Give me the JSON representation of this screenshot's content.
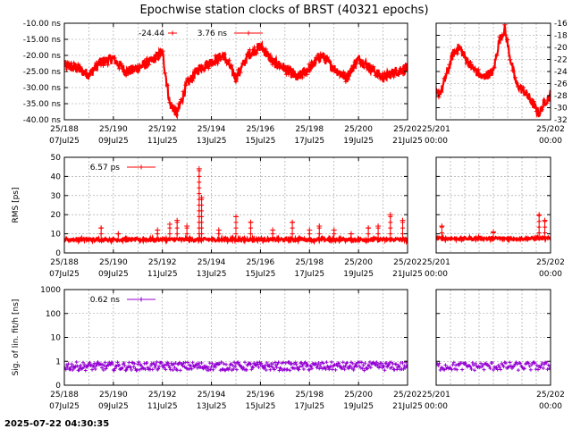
{
  "title": "Epochwise station clocks of BRST (40321 epochs)",
  "timestamp": "2025-07-22 04:30:35",
  "colors": {
    "clock": "#ff0000",
    "rms": "#ff0000",
    "sig": "#9400d3",
    "grid": "#999999"
  },
  "chart_data": [
    {
      "id": "clock-main",
      "type": "line",
      "ylabel": "",
      "ylim": [
        -40,
        -10
      ],
      "yticks": [
        -10,
        -15,
        -20,
        -25,
        -30,
        -35,
        -40
      ],
      "yticklabels": [
        "-10.00 ns",
        "-15.00 ns",
        "-20.00 ns",
        "-25.00 ns",
        "-30.00 ns",
        "-35.00 ns",
        "-40.00 ns"
      ],
      "xlim": [
        188,
        202
      ],
      "xticks": [
        188,
        190,
        192,
        194,
        196,
        198,
        200,
        202
      ],
      "xticklabels": [
        [
          "25/188",
          "07Jul25"
        ],
        [
          "25/190",
          "09Jul25"
        ],
        [
          "25/192",
          "11Jul25"
        ],
        [
          "25/194",
          "13Jul25"
        ],
        [
          "25/196",
          "15Jul25"
        ],
        [
          "25/198",
          "17Jul25"
        ],
        [
          "25/200",
          "19Jul25"
        ],
        [
          "25/202",
          "21Jul25"
        ]
      ],
      "legend": [
        {
          "value": "-24.44",
          "key": "offset"
        },
        {
          "value": "3.76 ns",
          "key": "rms"
        }
      ],
      "series": [
        {
          "x": [
            188.0,
            188.5,
            189.0,
            189.5,
            190.0,
            190.5,
            191.0,
            191.5,
            192.0,
            192.3,
            192.6,
            193.0,
            193.5,
            194.0,
            194.5,
            195.0,
            195.5,
            196.0,
            196.5,
            197.0,
            197.5,
            198.0,
            198.5,
            199.0,
            199.5,
            200.0,
            200.5,
            201.0,
            201.5,
            202.0
          ],
          "y": [
            -23,
            -24,
            -26,
            -22,
            -21,
            -25,
            -24,
            -22,
            -19,
            -35,
            -38,
            -29,
            -24,
            -22,
            -20,
            -27,
            -20,
            -17,
            -22,
            -24,
            -27,
            -24,
            -20,
            -24,
            -27,
            -21,
            -24,
            -27,
            -25,
            -24
          ]
        }
      ]
    },
    {
      "id": "clock-zoom",
      "type": "line",
      "ylim": [
        -32,
        -16
      ],
      "yticks": [
        -16,
        -18,
        -20,
        -22,
        -24,
        -26,
        -28,
        -30,
        -32
      ],
      "yticklabels": [
        "-16",
        "-18",
        "-20",
        "-22",
        "-24",
        "-26",
        "-28",
        "-30",
        "-32"
      ],
      "xlim": [
        201,
        202
      ],
      "xticks": [
        201,
        202
      ],
      "xticklabels": [
        [
          "25/201",
          "00:00"
        ],
        [
          "25/202",
          "00:00"
        ]
      ],
      "series": [
        {
          "x": [
            201.0,
            201.05,
            201.1,
            201.15,
            201.2,
            201.3,
            201.4,
            201.5,
            201.55,
            201.6,
            201.65,
            201.7,
            201.8,
            201.9,
            201.95,
            202.0
          ],
          "y": [
            -28,
            -27,
            -24,
            -21,
            -20,
            -23,
            -25,
            -24,
            -19,
            -17,
            -22,
            -26,
            -28,
            -31,
            -29,
            -28
          ]
        }
      ]
    },
    {
      "id": "rms-main",
      "type": "line",
      "ylabel": "RMS [ps]",
      "ylim": [
        0,
        50
      ],
      "yticks": [
        0,
        10,
        20,
        30,
        40,
        50
      ],
      "yticklabels": [
        "0",
        "10",
        "20",
        "30",
        "40",
        "50"
      ],
      "xlim": [
        188,
        202
      ],
      "xticks": [
        188,
        190,
        192,
        194,
        196,
        198,
        200,
        202
      ],
      "xticklabels": [
        [
          "25/188",
          "07Jul25"
        ],
        [
          "25/190",
          "09Jul25"
        ],
        [
          "25/192",
          "11Jul25"
        ],
        [
          "25/194",
          "13Jul25"
        ],
        [
          "25/196",
          "15Jul25"
        ],
        [
          "25/198",
          "17Jul25"
        ],
        [
          "25/200",
          "19Jul25"
        ],
        [
          "25/202",
          "21Jul25"
        ]
      ],
      "legend": [
        {
          "value": "6.57 ps",
          "key": "rms"
        }
      ],
      "baseline": 7,
      "spikes": {
        "x": [
          189.5,
          190.2,
          191.8,
          192.3,
          192.6,
          193.0,
          193.5,
          193.6,
          194.3,
          195.0,
          195.6,
          196.5,
          197.3,
          198.0,
          198.4,
          199.0,
          199.7,
          200.4,
          200.8,
          201.3,
          201.8
        ],
        "y": [
          13,
          10,
          12,
          15,
          17,
          14,
          44,
          29,
          12,
          19,
          16,
          12,
          16,
          12,
          14,
          12,
          10,
          13,
          14,
          20,
          17
        ]
      }
    },
    {
      "id": "rms-zoom",
      "type": "line",
      "ylim": [
        0,
        50
      ],
      "yticks": [
        0,
        10,
        20,
        30,
        40,
        50
      ],
      "xlim": [
        201,
        202
      ],
      "xticks": [
        201,
        202
      ],
      "xticklabels": [
        [
          "25/201",
          "00:00"
        ],
        [
          "25/202",
          "00:00"
        ]
      ],
      "baseline": 7.5,
      "spikes": {
        "x": [
          201.05,
          201.5,
          201.9,
          201.95
        ],
        "y": [
          14,
          11,
          20,
          17
        ]
      }
    },
    {
      "id": "sig-main",
      "type": "scatter",
      "ylabel": "Sig. of lin. fit/h [ns]",
      "yscale": "log",
      "ylim": [
        0.1,
        1000
      ],
      "yticks": [
        0.1,
        1,
        10,
        100,
        1000
      ],
      "yticklabels": [
        "0",
        "1",
        "10",
        "100",
        "1000"
      ],
      "xlim": [
        188,
        202
      ],
      "xticks": [
        188,
        190,
        192,
        194,
        196,
        198,
        200,
        202
      ],
      "xticklabels": [
        [
          "25/188",
          "07Jul25"
        ],
        [
          "25/190",
          "09Jul25"
        ],
        [
          "25/192",
          "11Jul25"
        ],
        [
          "25/194",
          "13Jul25"
        ],
        [
          "25/196",
          "15Jul25"
        ],
        [
          "25/198",
          "17Jul25"
        ],
        [
          "25/200",
          "19Jul25"
        ],
        [
          "25/202",
          "21Jul25"
        ]
      ],
      "legend": [
        {
          "value": "0.62 ns",
          "key": "sig"
        }
      ],
      "typical": 0.62
    },
    {
      "id": "sig-zoom",
      "type": "scatter",
      "yscale": "log",
      "ylim": [
        0.1,
        1000
      ],
      "yticks": [
        0.1,
        1,
        10,
        100,
        1000
      ],
      "xlim": [
        201,
        202
      ],
      "xticks": [
        201,
        202
      ],
      "xticklabels": [
        [
          "25/201",
          "00:00"
        ],
        [
          "25/202",
          "00:00"
        ]
      ],
      "typical": 0.62
    }
  ]
}
